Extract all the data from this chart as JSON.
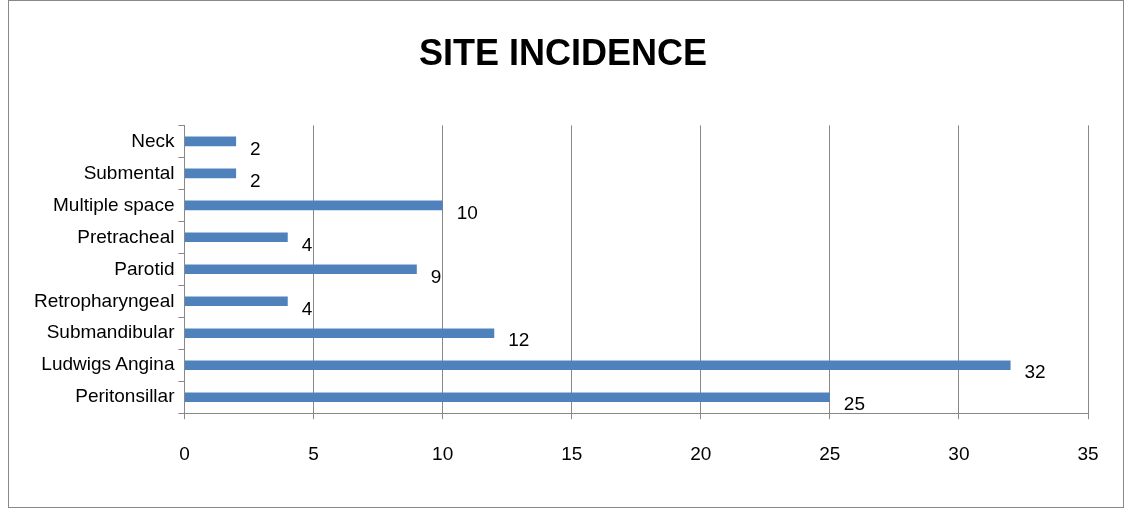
{
  "chart_data": {
    "type": "bar",
    "title": "SITE INCIDENCE",
    "orientation": "horizontal",
    "categories": [
      "Neck",
      "Submental",
      "Multiple space",
      "Pretracheal",
      "Parotid",
      "Retropharyngeal",
      "Submandibular",
      "Ludwigs Angina",
      "Peritonsillar"
    ],
    "values": [
      2,
      2,
      10,
      4,
      9,
      4,
      12,
      32,
      25
    ],
    "color": "#4f81bd",
    "xlim": [
      0,
      35
    ],
    "xticks": [
      0,
      5,
      10,
      15,
      20,
      25,
      30,
      35
    ],
    "grid": "x",
    "data_labels": true,
    "legend": false
  }
}
